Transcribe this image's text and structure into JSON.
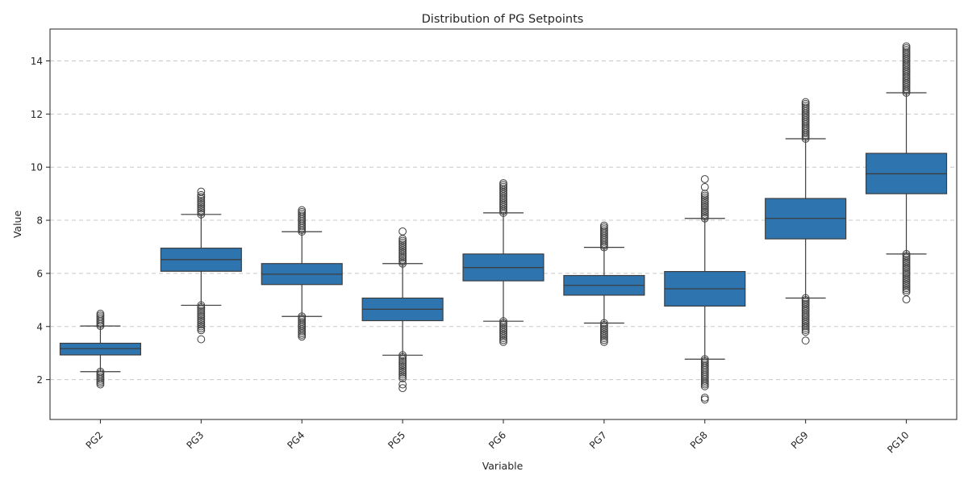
{
  "chart_data": {
    "type": "boxplot",
    "title": "Distribution of PG Setpoints",
    "xlabel": "Variable",
    "ylabel": "Value",
    "ylim": [
      0.5,
      15.2
    ],
    "yticks": [
      2,
      4,
      6,
      8,
      10,
      12,
      14
    ],
    "grid": "y-dashed",
    "box_color": "#2e75b0",
    "line_color": "#3d3d3d",
    "grid_color": "#c8c8c8",
    "categories": [
      "PG2",
      "PG3",
      "PG4",
      "PG5",
      "PG6",
      "PG7",
      "PG8",
      "PG9",
      "PG10"
    ],
    "boxes": [
      {
        "name": "PG2",
        "whisker_low": 2.3,
        "q1": 2.93,
        "median": 3.17,
        "q3": 3.37,
        "whisker_high": 4.02,
        "outliers_low": {
          "min": 1.82,
          "max": 2.3
        },
        "outliers_high": {
          "min": 4.02,
          "max": 4.48
        }
      },
      {
        "name": "PG3",
        "whisker_low": 4.8,
        "q1": 6.08,
        "median": 6.52,
        "q3": 6.95,
        "whisker_high": 8.22,
        "outliers_low": {
          "min": 3.86,
          "max": 4.8
        },
        "outliers_high": {
          "min": 8.22,
          "max": 8.95
        },
        "extra_outliers": [
          3.52,
          9.08
        ]
      },
      {
        "name": "PG4",
        "whisker_low": 4.38,
        "q1": 5.58,
        "median": 5.97,
        "q3": 6.37,
        "whisker_high": 7.57,
        "outliers_low": {
          "min": 3.62,
          "max": 4.38
        },
        "outliers_high": {
          "min": 7.57,
          "max": 8.38
        }
      },
      {
        "name": "PG5",
        "whisker_low": 2.92,
        "q1": 4.22,
        "median": 4.65,
        "q3": 5.07,
        "whisker_high": 6.37,
        "outliers_low": {
          "min": 2.05,
          "max": 2.92
        },
        "outliers_high": {
          "min": 6.37,
          "max": 7.3
        },
        "extra_outliers": [
          1.68,
          1.82,
          7.58
        ]
      },
      {
        "name": "PG6",
        "whisker_low": 4.2,
        "q1": 5.72,
        "median": 6.22,
        "q3": 6.73,
        "whisker_high": 8.28,
        "outliers_low": {
          "min": 3.42,
          "max": 4.2
        },
        "outliers_high": {
          "min": 8.28,
          "max": 9.4
        }
      },
      {
        "name": "PG7",
        "whisker_low": 4.13,
        "q1": 5.18,
        "median": 5.55,
        "q3": 5.92,
        "whisker_high": 6.98,
        "outliers_low": {
          "min": 3.42,
          "max": 4.13
        },
        "outliers_high": {
          "min": 6.98,
          "max": 7.8
        }
      },
      {
        "name": "PG8",
        "whisker_low": 2.77,
        "q1": 4.77,
        "median": 5.42,
        "q3": 6.07,
        "whisker_high": 8.07,
        "outliers_low": {
          "min": 1.75,
          "max": 2.77
        },
        "outliers_high": {
          "min": 8.07,
          "max": 9.0
        },
        "extra_outliers": [
          1.25,
          1.32,
          9.25,
          9.55
        ]
      },
      {
        "name": "PG9",
        "whisker_low": 5.07,
        "q1": 7.3,
        "median": 8.07,
        "q3": 8.82,
        "whisker_high": 11.07,
        "outliers_low": {
          "min": 3.8,
          "max": 5.07
        },
        "outliers_high": {
          "min": 11.07,
          "max": 12.45
        },
        "extra_outliers": [
          3.47
        ]
      },
      {
        "name": "PG10",
        "whisker_low": 6.73,
        "q1": 9.0,
        "median": 9.75,
        "q3": 10.52,
        "whisker_high": 12.8,
        "outliers_low": {
          "min": 5.3,
          "max": 6.73
        },
        "outliers_high": {
          "min": 12.8,
          "max": 14.55
        },
        "extra_outliers": [
          5.02
        ]
      }
    ]
  }
}
